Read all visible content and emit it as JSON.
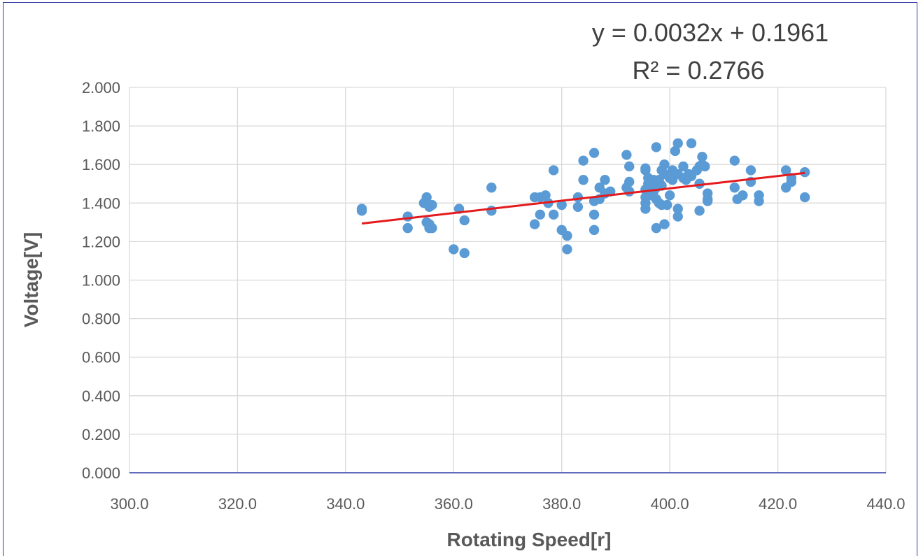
{
  "chart_data": {
    "type": "scatter",
    "xlabel": "Rotating Speed[r]",
    "ylabel": "Voltage[V]",
    "xlim": [
      300,
      440
    ],
    "ylim": [
      0,
      2
    ],
    "x_ticks": [
      "300.0",
      "320.0",
      "340.0",
      "360.0",
      "380.0",
      "400.0",
      "420.0",
      "440.0"
    ],
    "y_ticks": [
      "0.000",
      "0.200",
      "0.400",
      "0.600",
      "0.800",
      "1.000",
      "1.200",
      "1.400",
      "1.600",
      "1.800",
      "2.000"
    ],
    "grid": true,
    "colors": {
      "points": "#5b9bd5",
      "trendline": "#e41a1c",
      "x_axis": "#2f3aa6",
      "grid": "#d9d9d9"
    },
    "trendline": {
      "equation": "y = 0.0032x + 0.1961",
      "r_squared": "R² = 0.2766",
      "slope": 0.0032,
      "intercept": 0.1961,
      "x_range": [
        343,
        425
      ]
    },
    "points": [
      [
        343,
        1.36
      ],
      [
        343,
        1.37
      ],
      [
        351.5,
        1.33
      ],
      [
        351.5,
        1.27
      ],
      [
        354.5,
        1.4
      ],
      [
        355,
        1.43
      ],
      [
        355,
        1.3
      ],
      [
        355.5,
        1.29
      ],
      [
        355.5,
        1.38
      ],
      [
        355.5,
        1.27
      ],
      [
        356,
        1.39
      ],
      [
        356,
        1.27
      ],
      [
        360,
        1.16
      ],
      [
        361,
        1.37
      ],
      [
        362,
        1.14
      ],
      [
        362,
        1.31
      ],
      [
        367,
        1.48
      ],
      [
        367,
        1.36
      ],
      [
        375,
        1.43
      ],
      [
        375,
        1.29
      ],
      [
        376,
        1.43
      ],
      [
        376,
        1.34
      ],
      [
        377,
        1.44
      ],
      [
        377.5,
        1.4
      ],
      [
        378.5,
        1.34
      ],
      [
        378.5,
        1.57
      ],
      [
        380,
        1.26
      ],
      [
        380,
        1.39
      ],
      [
        381,
        1.23
      ],
      [
        381,
        1.16
      ],
      [
        383,
        1.38
      ],
      [
        383,
        1.43
      ],
      [
        384,
        1.52
      ],
      [
        384,
        1.62
      ],
      [
        386,
        1.26
      ],
      [
        386,
        1.34
      ],
      [
        386,
        1.41
      ],
      [
        386,
        1.66
      ],
      [
        387,
        1.48
      ],
      [
        387,
        1.42
      ],
      [
        388,
        1.52
      ],
      [
        388,
        1.45
      ],
      [
        389,
        1.46
      ],
      [
        392,
        1.65
      ],
      [
        392,
        1.48
      ],
      [
        392.5,
        1.59
      ],
      [
        392.5,
        1.51
      ],
      [
        392.5,
        1.46
      ],
      [
        395.5,
        1.37
      ],
      [
        395.5,
        1.4
      ],
      [
        395.5,
        1.43
      ],
      [
        395.5,
        1.47
      ],
      [
        395.5,
        1.58
      ],
      [
        395.5,
        1.57
      ],
      [
        396,
        1.5
      ],
      [
        396,
        1.53
      ],
      [
        396.5,
        1.44
      ],
      [
        396.5,
        1.47
      ],
      [
        397,
        1.52
      ],
      [
        397,
        1.46
      ],
      [
        397.5,
        1.69
      ],
      [
        397.5,
        1.27
      ],
      [
        397.5,
        1.51
      ],
      [
        397.5,
        1.48
      ],
      [
        397.5,
        1.42
      ],
      [
        398,
        1.4
      ],
      [
        398,
        1.52
      ],
      [
        398.5,
        1.39
      ],
      [
        398.5,
        1.57
      ],
      [
        398.5,
        1.49
      ],
      [
        399,
        1.6
      ],
      [
        399,
        1.55
      ],
      [
        399,
        1.29
      ],
      [
        399.5,
        1.39
      ],
      [
        400,
        1.44
      ],
      [
        400,
        1.53
      ],
      [
        400.5,
        1.52
      ],
      [
        400.5,
        1.55
      ],
      [
        400.5,
        1.57
      ],
      [
        401,
        1.67
      ],
      [
        401.5,
        1.71
      ],
      [
        401.5,
        1.37
      ],
      [
        401.5,
        1.33
      ],
      [
        401.5,
        1.55
      ],
      [
        402.5,
        1.53
      ],
      [
        402.5,
        1.59
      ],
      [
        403,
        1.52
      ],
      [
        403.5,
        1.55
      ],
      [
        404,
        1.71
      ],
      [
        404,
        1.54
      ],
      [
        405,
        1.57
      ],
      [
        405.5,
        1.59
      ],
      [
        405.5,
        1.5
      ],
      [
        405.5,
        1.36
      ],
      [
        406,
        1.64
      ],
      [
        406,
        1.6
      ],
      [
        406.5,
        1.59
      ],
      [
        407,
        1.41
      ],
      [
        407,
        1.42
      ],
      [
        407,
        1.45
      ],
      [
        412,
        1.62
      ],
      [
        412,
        1.48
      ],
      [
        412.5,
        1.42
      ],
      [
        413.5,
        1.44
      ],
      [
        415,
        1.51
      ],
      [
        415,
        1.57
      ],
      [
        416.5,
        1.44
      ],
      [
        416.5,
        1.41
      ],
      [
        421.5,
        1.57
      ],
      [
        421.5,
        1.48
      ],
      [
        422.5,
        1.51
      ],
      [
        422.5,
        1.53
      ],
      [
        425,
        1.56
      ],
      [
        425,
        1.43
      ]
    ]
  }
}
